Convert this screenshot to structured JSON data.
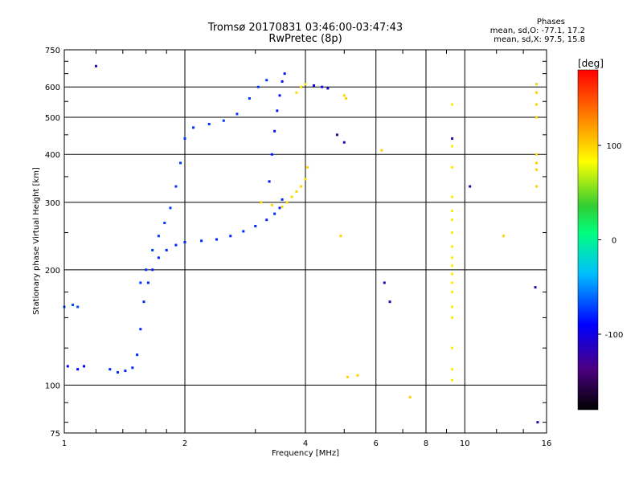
{
  "header": {
    "title_line1": "Tromsø 20170831 03:46:00-03:47:43",
    "title_line2": "RwPretec (8p)"
  },
  "phase_box": {
    "title": "Phases",
    "line_o": "mean, sd,O:  -77.1, 17.2",
    "line_x": "mean, sd,X:  97.5, 15.8"
  },
  "colorbar": {
    "unit_label": "[deg]",
    "range": [
      -180,
      180
    ],
    "ticks": [
      {
        "label": "100",
        "v": 100
      },
      {
        "label": "0",
        "v": 0
      },
      {
        "label": "-100",
        "v": -100
      }
    ]
  },
  "chart_data": {
    "type": "scatter",
    "xlabel": "Frequency [MHz]",
    "ylabel": "Stationary phase Virtual Height [km]",
    "xscale": "log",
    "yscale": "log",
    "xlim": [
      1,
      16
    ],
    "ylim": [
      75,
      750
    ],
    "grid": true,
    "x_ticks": [
      {
        "label": "1",
        "v": 1
      },
      {
        "label": "2",
        "v": 2
      },
      {
        "label": "4",
        "v": 4
      },
      {
        "label": "6",
        "v": 6
      },
      {
        "label": "8",
        "v": 8
      },
      {
        "label": "10",
        "v": 10
      },
      {
        "label": "16",
        "v": 16
      }
    ],
    "y_ticks": [
      {
        "label": "75",
        "v": 75
      },
      {
        "label": "100",
        "v": 100
      },
      {
        "label": "200",
        "v": 200
      },
      {
        "label": "300",
        "v": 300
      },
      {
        "label": "400",
        "v": 400
      },
      {
        "label": "500",
        "v": 500
      },
      {
        "label": "600",
        "v": 600
      },
      {
        "label": "750",
        "v": 750
      }
    ],
    "traces": [
      {
        "name": "O-trace lower branch",
        "phase": -80,
        "pts": [
          [
            1.3,
            110
          ],
          [
            1.36,
            108
          ],
          [
            1.42,
            109
          ],
          [
            1.48,
            111
          ],
          [
            1.52,
            120
          ],
          [
            1.55,
            140
          ],
          [
            1.58,
            165
          ],
          [
            1.62,
            185
          ],
          [
            1.66,
            200
          ],
          [
            1.72,
            215
          ],
          [
            1.8,
            225
          ],
          [
            1.9,
            232
          ],
          [
            2.0,
            236
          ],
          [
            2.2,
            238
          ],
          [
            2.4,
            240
          ],
          [
            2.6,
            245
          ],
          [
            2.8,
            252
          ],
          [
            3.0,
            260
          ],
          [
            3.2,
            270
          ],
          [
            3.35,
            280
          ],
          [
            3.45,
            290
          ],
          [
            3.5,
            305
          ]
        ]
      },
      {
        "name": "O-trace upper branch",
        "phase": -75,
        "pts": [
          [
            1.55,
            185
          ],
          [
            1.6,
            200
          ],
          [
            1.66,
            225
          ],
          [
            1.72,
            245
          ],
          [
            1.78,
            265
          ],
          [
            1.84,
            290
          ],
          [
            1.9,
            330
          ],
          [
            1.95,
            380
          ],
          [
            2.0,
            440
          ],
          [
            2.1,
            470
          ],
          [
            2.3,
            480
          ],
          [
            2.5,
            490
          ],
          [
            2.7,
            510
          ],
          [
            2.9,
            560
          ],
          [
            3.05,
            600
          ],
          [
            3.2,
            625
          ]
        ]
      },
      {
        "name": "O-trace second hop",
        "phase": -85,
        "pts": [
          [
            3.25,
            340
          ],
          [
            3.3,
            400
          ],
          [
            3.35,
            460
          ],
          [
            3.4,
            520
          ],
          [
            3.45,
            570
          ],
          [
            3.5,
            620
          ],
          [
            3.55,
            650
          ]
        ]
      },
      {
        "name": "X-trace",
        "phase": 98,
        "pts": [
          [
            3.1,
            300
          ],
          [
            3.3,
            295
          ],
          [
            3.5,
            292
          ],
          [
            3.6,
            300
          ],
          [
            3.7,
            310
          ],
          [
            3.8,
            320
          ],
          [
            3.9,
            330
          ],
          [
            4.0,
            345
          ],
          [
            4.05,
            370
          ]
        ]
      },
      {
        "name": "X-trace upper",
        "phase": 95,
        "pts": [
          [
            3.8,
            580
          ],
          [
            3.9,
            600
          ],
          [
            4.0,
            610
          ]
        ]
      },
      {
        "name": "F-region high",
        "phase": -100,
        "pts": [
          [
            4.2,
            605
          ],
          [
            4.4,
            600
          ],
          [
            4.55,
            595
          ]
        ]
      },
      {
        "name": "low-height cluster",
        "phase": -70,
        "pts": [
          [
            1.0,
            160
          ],
          [
            1.05,
            162
          ],
          [
            1.08,
            160
          ]
        ]
      },
      {
        "name": "low-height cluster 2",
        "phase": -90,
        "pts": [
          [
            1.02,
            112
          ],
          [
            1.08,
            110
          ],
          [
            1.12,
            112
          ]
        ]
      },
      {
        "name": "scattered",
        "phase": 100,
        "pts": [
          [
            5.0,
            570
          ],
          [
            5.05,
            560
          ],
          [
            5.1,
            105
          ],
          [
            5.4,
            106
          ],
          [
            7.3,
            93
          ],
          [
            12.5,
            245
          ],
          [
            4.9,
            245
          ],
          [
            6.2,
            410
          ]
        ]
      },
      {
        "name": "scattered blue",
        "phase": -120,
        "pts": [
          [
            1.2,
            680
          ],
          [
            4.8,
            450
          ],
          [
            5.0,
            430
          ],
          [
            6.3,
            185
          ],
          [
            6.5,
            165
          ],
          [
            10.3,
            330
          ],
          [
            15.0,
            180
          ],
          [
            15.2,
            80
          ],
          [
            9.3,
            440
          ]
        ]
      },
      {
        "name": "vertical streak 9.3 MHz",
        "phase": 90,
        "pts": [
          [
            9.3,
            540
          ],
          [
            9.3,
            420
          ],
          [
            9.3,
            370
          ],
          [
            9.3,
            310
          ],
          [
            9.3,
            285
          ],
          [
            9.3,
            270
          ],
          [
            9.3,
            250
          ],
          [
            9.3,
            230
          ],
          [
            9.3,
            215
          ],
          [
            9.3,
            205
          ],
          [
            9.3,
            195
          ],
          [
            9.3,
            185
          ],
          [
            9.3,
            175
          ],
          [
            9.3,
            160
          ],
          [
            9.3,
            150
          ],
          [
            9.3,
            125
          ],
          [
            9.3,
            110
          ],
          [
            9.3,
            103
          ]
        ]
      },
      {
        "name": "vertical streak 15 MHz",
        "phase": 100,
        "pts": [
          [
            15.1,
            610
          ],
          [
            15.1,
            580
          ],
          [
            15.1,
            540
          ],
          [
            15.1,
            500
          ],
          [
            15.1,
            400
          ],
          [
            15.1,
            380
          ],
          [
            15.1,
            365
          ],
          [
            15.1,
            330
          ]
        ]
      }
    ]
  }
}
